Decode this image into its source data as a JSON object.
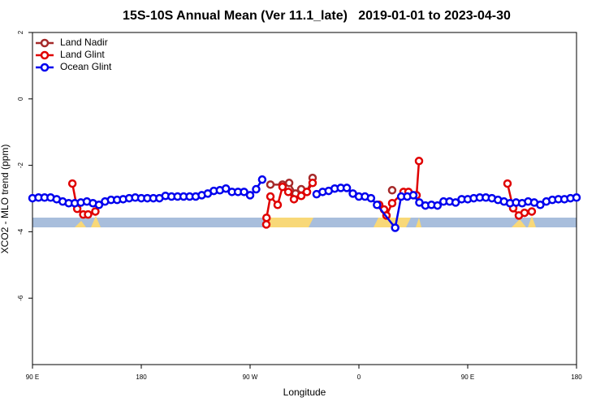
{
  "chart_data": {
    "type": "line",
    "title": "15S-10S Annual Mean (Ver 11.1_late)   2019-01-01 to 2023-04-30",
    "x_label": "Longitude",
    "y_label": "XCO2 - MLO trend (ppm)",
    "xlim": [
      90,
      540
    ],
    "ylim": [
      -8,
      2
    ],
    "xticks": [
      {
        "value": 90,
        "label": "90 E"
      },
      180,
      {
        "value": 270,
        "label": "90 W"
      },
      {
        "value": 360,
        "label": "0"
      },
      {
        "value": 450,
        "label": "90 E"
      },
      {
        "value": 540,
        "label": "180"
      }
    ],
    "yticks": [
      2,
      0,
      -2,
      -4,
      -6
    ],
    "legend": "top-left",
    "series": [
      {
        "name": "Land Nadir",
        "color": "#a52a2a",
        "x": [
          286.8,
          296.8,
          302.3,
          307.6,
          312.3,
          317,
          321.7,
          350,
          387.5
        ],
        "values": [
          -2.58,
          -2.58,
          -2.53,
          -2.85,
          -2.72,
          -2.8,
          -2.38,
          null,
          -2.75
        ]
      },
      {
        "name": "Land Glint",
        "color": "#e00000",
        "x": [
          123,
          127,
          132,
          136,
          142,
          200,
          283.4,
          283.6,
          286.8,
          292.8,
          296.8,
          301.6,
          306.3,
          312.3,
          317,
          321.7,
          350,
          376.8,
          380.8,
          382.8,
          387.5,
          396.9,
          401,
          407.7,
          409.7,
          450,
          482.9,
          487.6,
          492.3,
          497,
          503
        ],
        "values": [
          -2.55,
          -3.31,
          -3.48,
          -3.48,
          -3.39,
          null,
          -3.78,
          -3.58,
          -2.94,
          -3.19,
          -2.65,
          -2.8,
          -3.02,
          -2.92,
          -2.8,
          -2.53,
          null,
          -3.19,
          -3.33,
          -3.51,
          -3.14,
          -2.8,
          -2.8,
          -2.9,
          -1.87,
          null,
          -2.55,
          -3.29,
          -3.51,
          -3.43,
          -3.39
        ]
      },
      {
        "name": "Ocean Glint",
        "color": "#0000ee",
        "x": [
          90,
          95,
          100,
          105,
          110,
          115,
          120,
          125,
          130,
          135,
          140,
          145,
          150,
          155,
          160,
          165,
          170,
          175,
          180,
          185,
          190,
          195,
          200,
          205,
          210,
          215,
          220,
          225,
          230,
          235,
          240,
          245,
          250,
          255,
          260,
          265,
          270,
          275,
          280,
          300,
          325,
          330,
          335,
          340,
          345,
          350,
          355,
          360,
          365,
          370,
          375,
          390,
          395,
          400,
          405,
          410,
          415,
          420,
          425,
          430,
          435,
          440,
          445,
          450,
          455,
          460,
          465,
          470,
          475,
          480,
          485,
          490,
          495,
          500,
          505,
          510,
          515,
          520,
          525,
          530,
          535,
          540
        ],
        "values": [
          -2.99,
          -2.97,
          -2.97,
          -2.97,
          -3.02,
          -3.09,
          -3.14,
          -3.14,
          -3.12,
          -3.09,
          -3.14,
          -3.19,
          -3.09,
          -3.04,
          -3.04,
          -3.02,
          -2.99,
          -2.97,
          -2.99,
          -2.99,
          -2.99,
          -2.99,
          -2.92,
          -2.94,
          -2.94,
          -2.94,
          -2.94,
          -2.94,
          -2.9,
          -2.85,
          -2.77,
          -2.75,
          -2.7,
          -2.8,
          -2.8,
          -2.8,
          -2.9,
          -2.72,
          -2.43,
          null,
          -2.87,
          -2.8,
          -2.77,
          -2.7,
          -2.68,
          -2.68,
          -2.85,
          -2.94,
          -2.94,
          -2.99,
          -3.19,
          -3.88,
          -2.94,
          -2.94,
          -2.9,
          -3.12,
          -3.21,
          -3.19,
          -3.21,
          -3.09,
          -3.09,
          -3.12,
          -3.02,
          -3.02,
          -2.99,
          -2.97,
          -2.97,
          -2.99,
          -3.04,
          -3.09,
          -3.14,
          -3.12,
          -3.14,
          -3.09,
          -3.12,
          -3.19,
          -3.09,
          -3.04,
          -3.02,
          -3.02,
          -2.99,
          -2.97
        ]
      }
    ]
  }
}
